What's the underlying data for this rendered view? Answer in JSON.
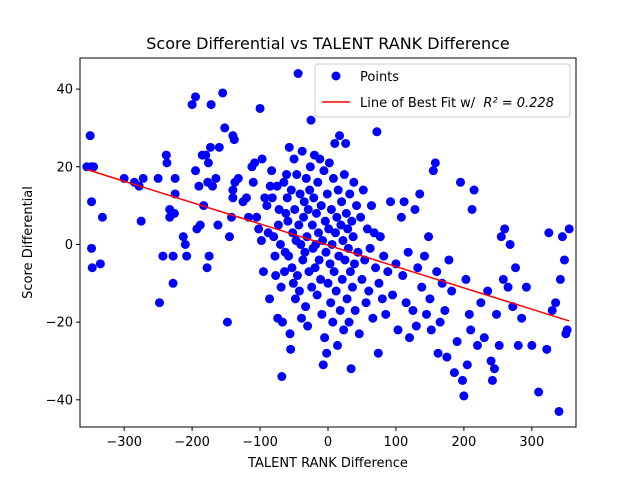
{
  "chart_data": {
    "type": "scatter",
    "title": "Score Differential vs TALENT RANK Difference",
    "xlabel": "TALENT RANK Difference",
    "ylabel": "Score Differential",
    "xlim": [
      -365,
      365
    ],
    "ylim": [
      -47,
      48
    ],
    "xticks": [
      -300,
      -200,
      -100,
      0,
      100,
      200,
      300
    ],
    "xtick_labels": [
      "−300",
      "−200",
      "−100",
      "0",
      "100",
      "200",
      "300"
    ],
    "yticks": [
      -40,
      -20,
      0,
      20,
      40
    ],
    "ytick_labels": [
      "−40",
      "−20",
      "0",
      "20",
      "40"
    ],
    "grid": false,
    "legend_position": "top-right",
    "colors": {
      "points": "#0000ff",
      "fit_line": "#ff0000"
    },
    "series": [
      {
        "name": "Points",
        "kind": "scatter",
        "points": [
          [
            -350,
            28
          ],
          [
            -355,
            20
          ],
          [
            -348,
            20
          ],
          [
            -345,
            20
          ],
          [
            -348,
            11
          ],
          [
            -348,
            -1
          ],
          [
            -347,
            -6
          ],
          [
            -332,
            7
          ],
          [
            -335,
            -5
          ],
          [
            -300,
            17
          ],
          [
            -285,
            16
          ],
          [
            -278,
            15
          ],
          [
            -272,
            17
          ],
          [
            -275,
            6
          ],
          [
            -250,
            17
          ],
          [
            -248,
            -15
          ],
          [
            -243,
            -3
          ],
          [
            -238,
            23
          ],
          [
            -237,
            21
          ],
          [
            -233,
            7
          ],
          [
            -233,
            9
          ],
          [
            -225,
            13
          ],
          [
            -226,
            8
          ],
          [
            -225,
            17
          ],
          [
            -228,
            -3
          ],
          [
            -228,
            -10
          ],
          [
            -213,
            2
          ],
          [
            -210,
            0
          ],
          [
            -208,
            -3
          ],
          [
            -200,
            36
          ],
          [
            -195,
            38
          ],
          [
            -195,
            19
          ],
          [
            -193,
            4
          ],
          [
            -190,
            15
          ],
          [
            -188,
            5
          ],
          [
            -185,
            23
          ],
          [
            -183,
            10
          ],
          [
            -180,
            23
          ],
          [
            -178,
            -6
          ],
          [
            -177,
            16
          ],
          [
            -176,
            21
          ],
          [
            -175,
            -3
          ],
          [
            -173,
            25
          ],
          [
            -172,
            36
          ],
          [
            -170,
            15
          ],
          [
            -165,
            17
          ],
          [
            -162,
            5
          ],
          [
            -160,
            25
          ],
          [
            -155,
            39
          ],
          [
            -152,
            30
          ],
          [
            -148,
            -20
          ],
          [
            -145,
            2
          ],
          [
            -142,
            7
          ],
          [
            -140,
            28
          ],
          [
            -138,
            27
          ],
          [
            -140,
            14
          ],
          [
            -140,
            12
          ],
          [
            -137,
            16
          ],
          [
            -132,
            17
          ],
          [
            -125,
            11
          ],
          [
            -120,
            12
          ],
          [
            -117,
            7
          ],
          [
            -112,
            20
          ],
          [
            -110,
            16
          ],
          [
            -108,
            21
          ],
          [
            -105,
            7
          ],
          [
            -102,
            4
          ],
          [
            -100,
            35
          ],
          [
            -98,
            1
          ],
          [
            -97,
            22
          ],
          [
            -95,
            -7
          ],
          [
            -93,
            12
          ],
          [
            -90,
            10
          ],
          [
            -88,
            3
          ],
          [
            -86,
            -14
          ],
          [
            -85,
            15
          ],
          [
            -83,
            19
          ],
          [
            -82,
            12
          ],
          [
            -80,
            2
          ],
          [
            -78,
            -3
          ],
          [
            -77,
            -8
          ],
          [
            -75,
            15
          ],
          [
            -74,
            -19
          ],
          [
            -73,
            5
          ],
          [
            -72,
            9
          ],
          [
            -70,
            0
          ],
          [
            -69,
            -11
          ],
          [
            -68,
            -34
          ],
          [
            -67,
            -20
          ],
          [
            -65,
            16
          ],
          [
            -64,
            -7
          ],
          [
            -63,
            -2
          ],
          [
            -62,
            8
          ],
          [
            -61,
            18
          ],
          [
            -60,
            12
          ],
          [
            -59,
            6
          ],
          [
            -58,
            -3
          ],
          [
            -57,
            25
          ],
          [
            -56,
            -23
          ],
          [
            -55,
            -27
          ],
          [
            -54,
            14
          ],
          [
            -53,
            -6
          ],
          [
            -52,
            3
          ],
          [
            -51,
            -10
          ],
          [
            -50,
            22
          ],
          [
            -49,
            9
          ],
          [
            -48,
            -14
          ],
          [
            -47,
            1
          ],
          [
            -46,
            18
          ],
          [
            -45,
            -8
          ],
          [
            -44,
            44
          ],
          [
            -43,
            5
          ],
          [
            -42,
            -12
          ],
          [
            -41,
            13
          ],
          [
            -40,
            0
          ],
          [
            -39,
            -19
          ],
          [
            -38,
            24
          ],
          [
            -37,
            -4
          ],
          [
            -36,
            7
          ],
          [
            -35,
            11
          ],
          [
            -34,
            -2
          ],
          [
            -33,
            -16
          ],
          [
            -32,
            17
          ],
          [
            -31,
            2
          ],
          [
            -30,
            -21
          ],
          [
            -29,
            9
          ],
          [
            -28,
            -7
          ],
          [
            -27,
            14
          ],
          [
            -26,
            20
          ],
          [
            -25,
            32
          ],
          [
            -24,
            -11
          ],
          [
            -23,
            5
          ],
          [
            -22,
            -1
          ],
          [
            -21,
            12
          ],
          [
            -20,
            23
          ],
          [
            -19,
            -6
          ],
          [
            -18,
            0
          ],
          [
            -17,
            8
          ],
          [
            -16,
            -13
          ],
          [
            -15,
            16
          ],
          [
            -14,
            3
          ],
          [
            -13,
            -4
          ],
          [
            -12,
            22
          ],
          [
            -11,
            -9
          ],
          [
            -10,
            10
          ],
          [
            -9,
            -18
          ],
          [
            -8,
            1
          ],
          [
            -7,
            -31
          ],
          [
            -6,
            19
          ],
          [
            -5,
            -24
          ],
          [
            -4,
            6
          ],
          [
            -3,
            -2
          ],
          [
            -2,
            -28
          ],
          [
            -1,
            13
          ],
          [
            0,
            -10
          ],
          [
            1,
            4
          ],
          [
            2,
            21
          ],
          [
            3,
            -5
          ],
          [
            4,
            -15
          ],
          [
            5,
            9
          ],
          [
            6,
            0
          ],
          [
            7,
            -20
          ],
          [
            8,
            17
          ],
          [
            9,
            -7
          ],
          [
            10,
            26
          ],
          [
            11,
            3
          ],
          [
            12,
            -12
          ],
          [
            13,
            7
          ],
          [
            14,
            -26
          ],
          [
            15,
            14
          ],
          [
            16,
            -3
          ],
          [
            17,
            28
          ],
          [
            18,
            -17
          ],
          [
            19,
            5
          ],
          [
            20,
            11
          ],
          [
            21,
            -9
          ],
          [
            22,
            1
          ],
          [
            23,
            -22
          ],
          [
            24,
            18
          ],
          [
            25,
            -4
          ],
          [
            26,
            26
          ],
          [
            27,
            8
          ],
          [
            28,
            -14
          ],
          [
            29,
            4
          ],
          [
            30,
            -1
          ],
          [
            31,
            -20
          ],
          [
            32,
            13
          ],
          [
            33,
            -7
          ],
          [
            34,
            -32
          ],
          [
            35,
            6
          ],
          [
            36,
            -11
          ],
          [
            37,
            2
          ],
          [
            38,
            16
          ],
          [
            39,
            -5
          ],
          [
            40,
            -17
          ],
          [
            42,
            10
          ],
          [
            44,
            -2
          ],
          [
            46,
            -23
          ],
          [
            48,
            7
          ],
          [
            50,
            -9
          ],
          [
            52,
            14
          ],
          [
            54,
            -4
          ],
          [
            56,
            -15
          ],
          [
            58,
            4
          ],
          [
            60,
            -12
          ],
          [
            62,
            -1
          ],
          [
            64,
            10
          ],
          [
            66,
            -19
          ],
          [
            68,
            3
          ],
          [
            70,
            -6
          ],
          [
            72,
            29
          ],
          [
            74,
            -28
          ],
          [
            75,
            -10
          ],
          [
            77,
            2
          ],
          [
            80,
            -14
          ],
          [
            82,
            -3
          ],
          [
            85,
            -18
          ],
          [
            88,
            -7
          ],
          [
            92,
            11
          ],
          [
            95,
            -13
          ],
          [
            100,
            -5
          ],
          [
            103,
            -22
          ],
          [
            108,
            7
          ],
          [
            110,
            -8
          ],
          [
            112,
            11
          ],
          [
            115,
            -15
          ],
          [
            118,
            -2
          ],
          [
            120,
            -24
          ],
          [
            125,
            -17
          ],
          [
            128,
            9
          ],
          [
            130,
            -21
          ],
          [
            132,
            -6
          ],
          [
            135,
            13
          ],
          [
            138,
            -11
          ],
          [
            142,
            -3
          ],
          [
            145,
            -18
          ],
          [
            148,
            2
          ],
          [
            150,
            -14
          ],
          [
            152,
            -22
          ],
          [
            155,
            19
          ],
          [
            158,
            21
          ],
          [
            160,
            -7
          ],
          [
            162,
            -28
          ],
          [
            165,
            -20
          ],
          [
            168,
            -10
          ],
          [
            172,
            -17
          ],
          [
            175,
            -29
          ],
          [
            178,
            -4
          ],
          [
            182,
            -12
          ],
          [
            186,
            -33
          ],
          [
            190,
            -25
          ],
          [
            195,
            16
          ],
          [
            198,
            -35
          ],
          [
            200,
            -39
          ],
          [
            203,
            -9
          ],
          [
            205,
            -31
          ],
          [
            208,
            -18
          ],
          [
            210,
            -22
          ],
          [
            212,
            9
          ],
          [
            215,
            14
          ],
          [
            220,
            -26
          ],
          [
            225,
            -15
          ],
          [
            230,
            -24
          ],
          [
            235,
            -12
          ],
          [
            240,
            -30
          ],
          [
            242,
            -35
          ],
          [
            245,
            -32
          ],
          [
            248,
            -18
          ],
          [
            252,
            -26
          ],
          [
            255,
            2
          ],
          [
            258,
            -9
          ],
          [
            260,
            4
          ],
          [
            265,
            -11
          ],
          [
            268,
            0
          ],
          [
            272,
            -16
          ],
          [
            276,
            -6
          ],
          [
            280,
            -26
          ],
          [
            285,
            -19
          ],
          [
            292,
            -11
          ],
          [
            300,
            -26
          ],
          [
            310,
            -38
          ],
          [
            322,
            -27
          ],
          [
            325,
            3
          ],
          [
            330,
            -17
          ],
          [
            335,
            -15
          ],
          [
            340,
            -43
          ],
          [
            342,
            -9
          ],
          [
            345,
            2
          ],
          [
            348,
            -4
          ],
          [
            350,
            -23
          ],
          [
            352,
            -22
          ],
          [
            355,
            4
          ]
        ]
      },
      {
        "name": "Line of Best Fit w/",
        "name_math": "R² = 0.228",
        "kind": "line",
        "points": [
          [
            -355,
            19.3
          ],
          [
            355,
            -19.7
          ]
        ]
      }
    ]
  }
}
